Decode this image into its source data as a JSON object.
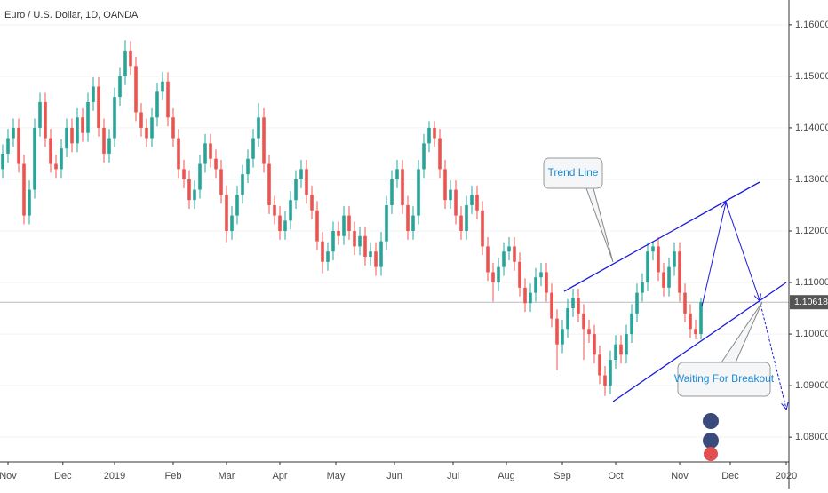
{
  "chart_data": {
    "type": "candlestick",
    "title": "Euro / U.S. Dollar, 1D, OANDA",
    "up_color": "#26a69a",
    "down_color": "#ef5350",
    "xlim": [
      -0.5,
      147.5
    ],
    "xticks": [
      {
        "value": 1,
        "label": "Nov"
      },
      {
        "value": 11.3,
        "label": "Dec"
      },
      {
        "value": 21,
        "label": "2019"
      },
      {
        "value": 32,
        "label": "Feb"
      },
      {
        "value": 42,
        "label": "Mar"
      },
      {
        "value": 52,
        "label": "Apr"
      },
      {
        "value": 62.5,
        "label": "May"
      },
      {
        "value": 73.5,
        "label": "Jun"
      },
      {
        "value": 84.5,
        "label": "Jul"
      },
      {
        "value": 94.5,
        "label": "Aug"
      },
      {
        "value": 105,
        "label": "Sep"
      },
      {
        "value": 115,
        "label": "Oct"
      },
      {
        "value": 127,
        "label": "Nov"
      },
      {
        "value": 136.5,
        "label": "Dec"
      },
      {
        "value": 147,
        "label": "2020"
      }
    ],
    "ylim": [
      1.0752,
      1.1648
    ],
    "yticks": [
      {
        "value": 1.08,
        "label": "1.08000"
      },
      {
        "value": 1.09,
        "label": "1.09000"
      },
      {
        "value": 1.1,
        "label": "1.10000"
      },
      {
        "value": 1.11,
        "label": "1.11000"
      },
      {
        "value": 1.12,
        "label": "1.12000"
      },
      {
        "value": 1.13,
        "label": "1.13000"
      },
      {
        "value": 1.14,
        "label": "1.14000"
      },
      {
        "value": 1.15,
        "label": "1.15000"
      },
      {
        "value": 1.16,
        "label": "1.16000"
      }
    ],
    "last_price": 1.10618,
    "annotations": [
      "Trend Line",
      "Waiting For Breakout"
    ],
    "candles": [
      [
        1.132,
        1.1368,
        1.1303,
        1.135
      ],
      [
        1.135,
        1.1398,
        1.1333,
        1.138
      ],
      [
        1.138,
        1.1418,
        1.1363,
        1.14
      ],
      [
        1.14,
        1.1418,
        1.1313,
        1.133
      ],
      [
        1.133,
        1.1348,
        1.1213,
        1.123
      ],
      [
        1.123,
        1.1298,
        1.1213,
        1.128
      ],
      [
        1.128,
        1.1418,
        1.1263,
        1.14
      ],
      [
        1.14,
        1.1468,
        1.1383,
        1.145
      ],
      [
        1.145,
        1.1468,
        1.1363,
        1.138
      ],
      [
        1.138,
        1.1398,
        1.1313,
        1.133
      ],
      [
        1.133,
        1.1348,
        1.1303,
        1.132
      ],
      [
        1.132,
        1.1378,
        1.1303,
        1.136
      ],
      [
        1.136,
        1.1418,
        1.1343,
        1.14
      ],
      [
        1.14,
        1.1418,
        1.1353,
        1.137
      ],
      [
        1.137,
        1.1438,
        1.1353,
        1.142
      ],
      [
        1.142,
        1.1438,
        1.1373,
        1.139
      ],
      [
        1.139,
        1.1468,
        1.1373,
        1.145
      ],
      [
        1.145,
        1.1498,
        1.1433,
        1.148
      ],
      [
        1.148,
        1.1498,
        1.1383,
        1.14
      ],
      [
        1.14,
        1.1418,
        1.1333,
        1.135
      ],
      [
        1.135,
        1.1398,
        1.1333,
        1.138
      ],
      [
        1.138,
        1.1478,
        1.1363,
        1.146
      ],
      [
        1.146,
        1.1518,
        1.1443,
        1.15
      ],
      [
        1.15,
        1.157,
        1.1483,
        1.155
      ],
      [
        1.155,
        1.1568,
        1.1503,
        1.152
      ],
      [
        1.152,
        1.1538,
        1.1413,
        1.143
      ],
      [
        1.143,
        1.1448,
        1.1383,
        1.14
      ],
      [
        1.14,
        1.1418,
        1.1363,
        1.138
      ],
      [
        1.138,
        1.1438,
        1.1363,
        1.142
      ],
      [
        1.142,
        1.1488,
        1.1403,
        1.147
      ],
      [
        1.147,
        1.1508,
        1.1453,
        1.149
      ],
      [
        1.149,
        1.1508,
        1.1403,
        1.142
      ],
      [
        1.142,
        1.1438,
        1.1363,
        1.138
      ],
      [
        1.138,
        1.1398,
        1.1303,
        1.132
      ],
      [
        1.132,
        1.1338,
        1.1283,
        1.13
      ],
      [
        1.13,
        1.1318,
        1.1243,
        1.126
      ],
      [
        1.126,
        1.1298,
        1.1243,
        1.128
      ],
      [
        1.128,
        1.1348,
        1.1263,
        1.133
      ],
      [
        1.133,
        1.1388,
        1.1313,
        1.137
      ],
      [
        1.137,
        1.1388,
        1.1323,
        1.134
      ],
      [
        1.134,
        1.1358,
        1.1303,
        1.132
      ],
      [
        1.132,
        1.1338,
        1.1253,
        1.127
      ],
      [
        1.127,
        1.1288,
        1.1178,
        1.12
      ],
      [
        1.12,
        1.1248,
        1.1183,
        1.123
      ],
      [
        1.123,
        1.1288,
        1.1213,
        1.127
      ],
      [
        1.127,
        1.1328,
        1.1253,
        1.131
      ],
      [
        1.131,
        1.1358,
        1.1293,
        1.134
      ],
      [
        1.134,
        1.1398,
        1.1323,
        1.138
      ],
      [
        1.138,
        1.1448,
        1.1363,
        1.142
      ],
      [
        1.142,
        1.1438,
        1.1313,
        1.133
      ],
      [
        1.133,
        1.1348,
        1.1233,
        1.125
      ],
      [
        1.125,
        1.1268,
        1.1213,
        1.123
      ],
      [
        1.123,
        1.1248,
        1.1183,
        1.12
      ],
      [
        1.12,
        1.1238,
        1.1183,
        1.122
      ],
      [
        1.122,
        1.1278,
        1.1203,
        1.126
      ],
      [
        1.126,
        1.1318,
        1.1243,
        1.13
      ],
      [
        1.13,
        1.1338,
        1.1283,
        1.132
      ],
      [
        1.132,
        1.1338,
        1.1253,
        1.127
      ],
      [
        1.127,
        1.1288,
        1.1223,
        1.124
      ],
      [
        1.124,
        1.1258,
        1.1163,
        1.118
      ],
      [
        1.118,
        1.1198,
        1.1118,
        1.114
      ],
      [
        1.114,
        1.1178,
        1.1123,
        1.116
      ],
      [
        1.116,
        1.1218,
        1.1143,
        1.12
      ],
      [
        1.12,
        1.1218,
        1.1173,
        1.119
      ],
      [
        1.119,
        1.1248,
        1.1173,
        1.123
      ],
      [
        1.123,
        1.1248,
        1.1183,
        1.12
      ],
      [
        1.12,
        1.1218,
        1.1153,
        1.117
      ],
      [
        1.117,
        1.1208,
        1.1153,
        1.119
      ],
      [
        1.119,
        1.1208,
        1.1133,
        1.115
      ],
      [
        1.115,
        1.1178,
        1.1133,
        1.116
      ],
      [
        1.116,
        1.1178,
        1.1113,
        1.113
      ],
      [
        1.113,
        1.1198,
        1.1113,
        1.118
      ],
      [
        1.118,
        1.1268,
        1.1163,
        1.125
      ],
      [
        1.125,
        1.1318,
        1.1233,
        1.13
      ],
      [
        1.13,
        1.1338,
        1.1283,
        1.132
      ],
      [
        1.132,
        1.1338,
        1.1233,
        1.125
      ],
      [
        1.125,
        1.1268,
        1.1183,
        1.12
      ],
      [
        1.12,
        1.1248,
        1.1183,
        1.123
      ],
      [
        1.123,
        1.1338,
        1.1213,
        1.132
      ],
      [
        1.132,
        1.1388,
        1.1303,
        1.137
      ],
      [
        1.137,
        1.1413,
        1.1353,
        1.14
      ],
      [
        1.14,
        1.1413,
        1.1363,
        1.138
      ],
      [
        1.138,
        1.1398,
        1.1303,
        1.132
      ],
      [
        1.132,
        1.1338,
        1.1243,
        1.126
      ],
      [
        1.126,
        1.1298,
        1.1243,
        1.128
      ],
      [
        1.128,
        1.1298,
        1.1213,
        1.123
      ],
      [
        1.123,
        1.1248,
        1.1183,
        1.12
      ],
      [
        1.12,
        1.1268,
        1.1183,
        1.125
      ],
      [
        1.125,
        1.1288,
        1.1233,
        1.127
      ],
      [
        1.127,
        1.1288,
        1.1223,
        1.124
      ],
      [
        1.124,
        1.1258,
        1.1153,
        1.117
      ],
      [
        1.117,
        1.1188,
        1.1103,
        1.112
      ],
      [
        1.112,
        1.1138,
        1.1063,
        1.11
      ],
      [
        1.11,
        1.1148,
        1.1083,
        1.113
      ],
      [
        1.113,
        1.1178,
        1.1113,
        1.116
      ],
      [
        1.116,
        1.1188,
        1.1143,
        1.117
      ],
      [
        1.117,
        1.1188,
        1.1123,
        1.114
      ],
      [
        1.114,
        1.1158,
        1.1073,
        1.109
      ],
      [
        1.109,
        1.1108,
        1.1043,
        1.106
      ],
      [
        1.106,
        1.1098,
        1.1043,
        1.108
      ],
      [
        1.108,
        1.1128,
        1.1063,
        1.111
      ],
      [
        1.111,
        1.1138,
        1.1093,
        1.112
      ],
      [
        1.112,
        1.1138,
        1.1063,
        1.108
      ],
      [
        1.108,
        1.1098,
        1.1013,
        1.103
      ],
      [
        1.103,
        1.1048,
        1.093,
        1.098
      ],
      [
        1.098,
        1.1028,
        1.0963,
        1.101
      ],
      [
        1.101,
        1.1068,
        1.0993,
        1.105
      ],
      [
        1.105,
        1.1088,
        1.1033,
        1.107
      ],
      [
        1.107,
        1.1088,
        1.1023,
        1.104
      ],
      [
        1.104,
        1.1058,
        1.095,
        1.101
      ],
      [
        1.101,
        1.1028,
        1.0983,
        1.1
      ],
      [
        1.1,
        1.1018,
        1.0943,
        1.096
      ],
      [
        1.096,
        1.0978,
        1.0903,
        1.092
      ],
      [
        1.092,
        1.0938,
        1.088,
        1.09
      ],
      [
        1.09,
        1.0968,
        1.0883,
        1.095
      ],
      [
        1.095,
        1.0998,
        1.0933,
        1.098
      ],
      [
        1.098,
        1.0998,
        1.0943,
        1.096
      ],
      [
        1.096,
        1.1018,
        1.0943,
        1.1
      ],
      [
        1.1,
        1.1058,
        1.0983,
        1.104
      ],
      [
        1.104,
        1.1098,
        1.1023,
        1.108
      ],
      [
        1.108,
        1.1118,
        1.1063,
        1.11
      ],
      [
        1.11,
        1.1178,
        1.1083,
        1.116
      ],
      [
        1.116,
        1.118,
        1.1143,
        1.117
      ],
      [
        1.117,
        1.1188,
        1.1103,
        1.112
      ],
      [
        1.112,
        1.1138,
        1.1073,
        1.109
      ],
      [
        1.109,
        1.1148,
        1.1073,
        1.113
      ],
      [
        1.113,
        1.1178,
        1.1113,
        1.116
      ],
      [
        1.116,
        1.1178,
        1.1063,
        1.108
      ],
      [
        1.108,
        1.1098,
        1.1023,
        1.104
      ],
      [
        1.104,
        1.1058,
        1.0993,
        1.101
      ],
      [
        1.101,
        1.1028,
        1.099,
        1.1
      ],
      [
        1.1,
        1.107,
        1.099,
        1.1062
      ]
    ]
  }
}
